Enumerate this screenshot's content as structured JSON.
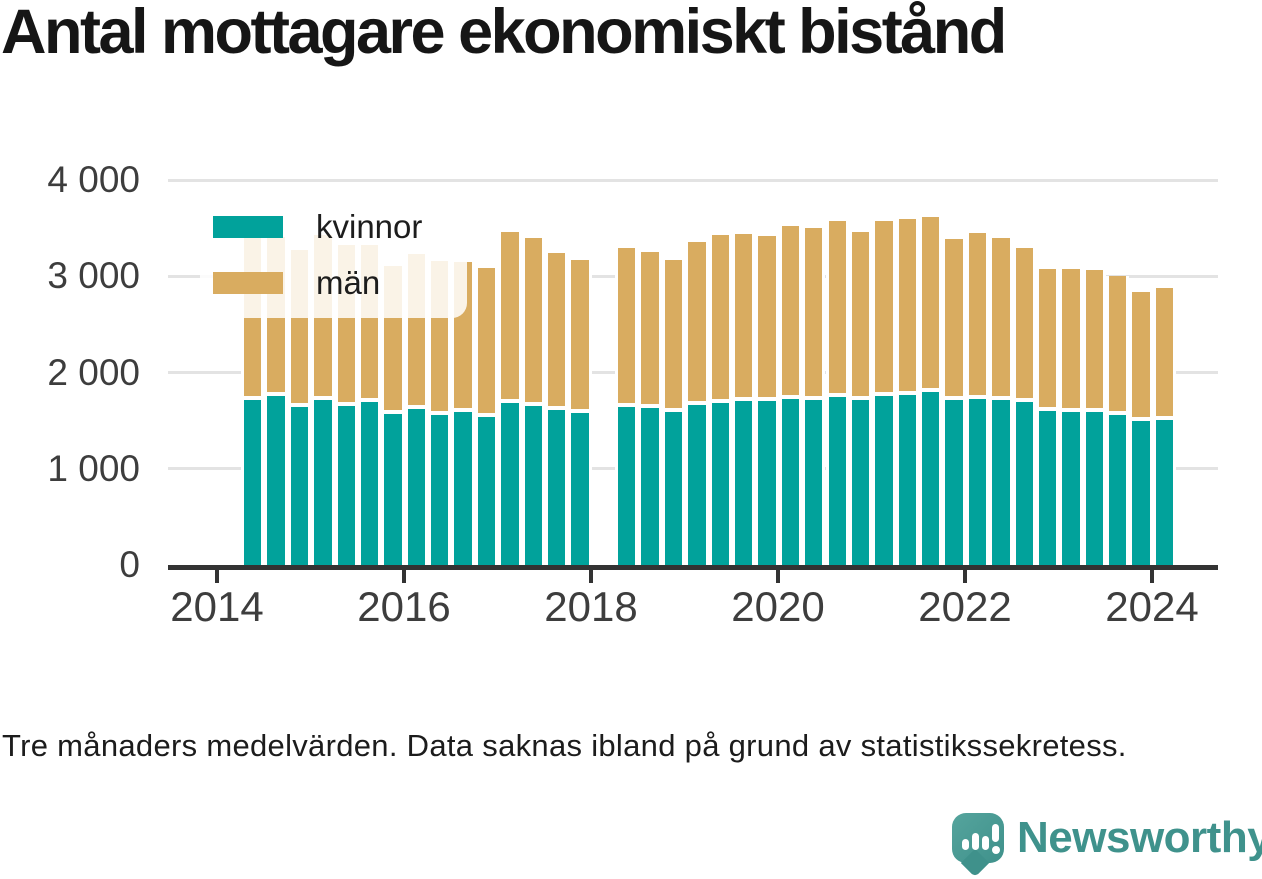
{
  "title": "Antal mottagare ekonomiskt bistånd",
  "footnote": "Tre månaders medelvärden. Data saknas ibland på grund av statistikssekretess.",
  "branding": {
    "logo_text": "Newsworthy",
    "logo_icon": "speech-bubble-with-bar-chart-and-exclamation"
  },
  "colors": {
    "kvinnor": "#01a29b",
    "man": "#d9ac60",
    "axis": "#333333",
    "gridline": "#e3e3e3",
    "text_dark": "#161616",
    "tick_label": "#3d3d3d",
    "logo_teal": "#3f928c"
  },
  "legend": {
    "items": [
      {
        "label": "kvinnor"
      },
      {
        "label": "män"
      }
    ]
  },
  "chart_data": {
    "type": "bar",
    "stacked": true,
    "title": "Antal mottagare ekonomiskt bistånd",
    "xlabel": "",
    "ylabel": "",
    "ylim": [
      0,
      4000
    ],
    "grid": "horizontal",
    "legend_position": "top-left-inside",
    "note": "Tre månaders medelvärden. Data saknas ibland på grund av statistikssekretess.",
    "categories": [
      "2014 Q2",
      "2014 Q3",
      "2014 Q4",
      "2015 Q1",
      "2015 Q2",
      "2015 Q3",
      "2015 Q4",
      "2016 Q1",
      "2016 Q2",
      "2016 Q3",
      "2016 Q4",
      "2017 Q1",
      "2017 Q2",
      "2017 Q3",
      "2017 Q4",
      "2018 Q1",
      "2018 Q2",
      "2018 Q3",
      "2018 Q4",
      "2019 Q1",
      "2019 Q2",
      "2019 Q3",
      "2019 Q4",
      "2020 Q1",
      "2020 Q2",
      "2020 Q3",
      "2020 Q4",
      "2021 Q1",
      "2021 Q2",
      "2021 Q3",
      "2021 Q4",
      "2022 Q1",
      "2022 Q2",
      "2022 Q3",
      "2022 Q4",
      "2023 Q1",
      "2023 Q2",
      "2023 Q3",
      "2023 Q4",
      "2024 Q1"
    ],
    "missing_periods": [
      "2018 Q1"
    ],
    "series": [
      {
        "name": "kvinnor",
        "color": "#01a29b",
        "values": [
          1730,
          1770,
          1650,
          1720,
          1665,
          1700,
          1580,
          1635,
          1565,
          1595,
          1545,
          1690,
          1660,
          1620,
          1590,
          null,
          1655,
          1640,
          1600,
          1675,
          1690,
          1715,
          1715,
          1740,
          1725,
          1760,
          1725,
          1765,
          1775,
          1810,
          1730,
          1740,
          1725,
          1700,
          1610,
          1595,
          1595,
          1570,
          1505,
          1515
        ]
      },
      {
        "name": "män",
        "color": "#d9ac60",
        "values": [
          1675,
          1640,
          1620,
          1705,
          1660,
          1620,
          1530,
          1600,
          1590,
          1555,
          1540,
          1770,
          1735,
          1625,
          1580,
          null,
          1635,
          1610,
          1570,
          1685,
          1740,
          1720,
          1700,
          1785,
          1780,
          1810,
          1735,
          1805,
          1815,
          1805,
          1660,
          1705,
          1675,
          1595,
          1465,
          1480,
          1475,
          1430,
          1335,
          1365
        ]
      }
    ],
    "y_ticks": [
      0,
      1000,
      2000,
      3000,
      4000
    ],
    "y_tick_labels": [
      "0",
      "1 000",
      "2 000",
      "3 000",
      "4 000"
    ],
    "x_tick_labels": [
      "2014",
      "2016",
      "2018",
      "2020",
      "2022",
      "2024"
    ]
  }
}
